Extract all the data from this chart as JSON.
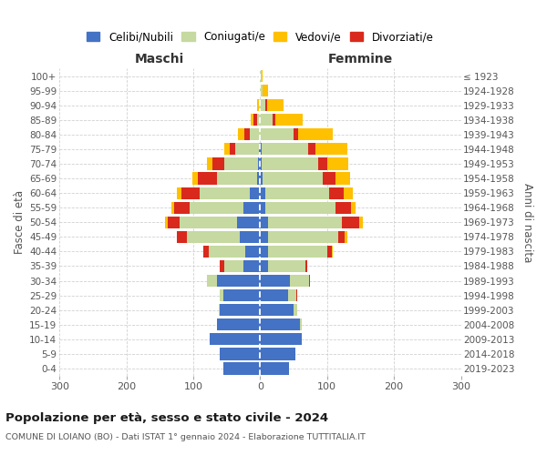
{
  "age_groups": [
    "0-4",
    "5-9",
    "10-14",
    "15-19",
    "20-24",
    "25-29",
    "30-34",
    "35-39",
    "40-44",
    "45-49",
    "50-54",
    "55-59",
    "60-64",
    "65-69",
    "70-74",
    "75-79",
    "80-84",
    "85-89",
    "90-94",
    "95-99",
    "100+"
  ],
  "birth_years": [
    "2019-2023",
    "2014-2018",
    "2009-2013",
    "2004-2008",
    "1999-2003",
    "1994-1998",
    "1989-1993",
    "1984-1988",
    "1979-1983",
    "1974-1978",
    "1969-1973",
    "1964-1968",
    "1959-1963",
    "1954-1958",
    "1949-1953",
    "1944-1948",
    "1939-1943",
    "1934-1938",
    "1929-1933",
    "1924-1928",
    "≤ 1923"
  ],
  "colors": {
    "celibi": "#4472c4",
    "coniugati": "#c5d9a0",
    "vedovi": "#ffc000",
    "divorziati": "#d9291c"
  },
  "male": {
    "celibi": [
      55,
      60,
      75,
      65,
      60,
      55,
      65,
      25,
      22,
      30,
      35,
      25,
      15,
      5,
      3,
      2,
      1,
      1,
      0,
      0,
      1
    ],
    "coniugati": [
      0,
      0,
      0,
      0,
      2,
      5,
      15,
      28,
      55,
      80,
      85,
      80,
      75,
      60,
      50,
      35,
      15,
      4,
      2,
      0,
      0
    ],
    "vedovi": [
      0,
      0,
      0,
      0,
      0,
      0,
      0,
      0,
      0,
      0,
      4,
      5,
      7,
      8,
      8,
      8,
      10,
      4,
      2,
      0,
      0
    ],
    "divorziati": [
      0,
      0,
      0,
      0,
      0,
      0,
      0,
      8,
      8,
      14,
      18,
      23,
      28,
      28,
      18,
      8,
      7,
      5,
      0,
      0,
      0
    ]
  },
  "female": {
    "nubili": [
      43,
      52,
      62,
      60,
      50,
      42,
      45,
      12,
      12,
      12,
      12,
      8,
      8,
      4,
      2,
      2,
      0,
      0,
      0,
      0,
      0
    ],
    "coniugate": [
      0,
      0,
      0,
      2,
      6,
      12,
      28,
      55,
      88,
      105,
      110,
      105,
      95,
      90,
      85,
      70,
      50,
      18,
      8,
      4,
      2
    ],
    "vedove": [
      0,
      0,
      0,
      0,
      0,
      0,
      0,
      0,
      2,
      4,
      6,
      7,
      13,
      22,
      32,
      48,
      52,
      42,
      25,
      8,
      2
    ],
    "divorziate": [
      0,
      0,
      0,
      0,
      0,
      2,
      2,
      4,
      7,
      9,
      26,
      23,
      22,
      18,
      13,
      10,
      7,
      4,
      2,
      0,
      0
    ]
  },
  "xlim": 300,
  "title": "Popolazione per età, sesso e stato civile - 2024",
  "subtitle": "COMUNE DI LOIANO (BO) - Dati ISTAT 1° gennaio 2024 - Elaborazione TUTTITALIA.IT",
  "xlabel_left": "Maschi",
  "xlabel_right": "Femmine",
  "ylabel_left": "Fasce di età",
  "ylabel_right": "Anni di nascita",
  "legend_labels": [
    "Celibi/Nubili",
    "Coniugati/e",
    "Vedovi/e",
    "Divorziati/e"
  ],
  "bg_color": "#ffffff",
  "grid_color": "#cccccc",
  "xticks": [
    -300,
    -200,
    -100,
    0,
    100,
    200,
    300
  ],
  "xticklabels": [
    "300",
    "200",
    "100",
    "0",
    "100",
    "200",
    "300"
  ]
}
